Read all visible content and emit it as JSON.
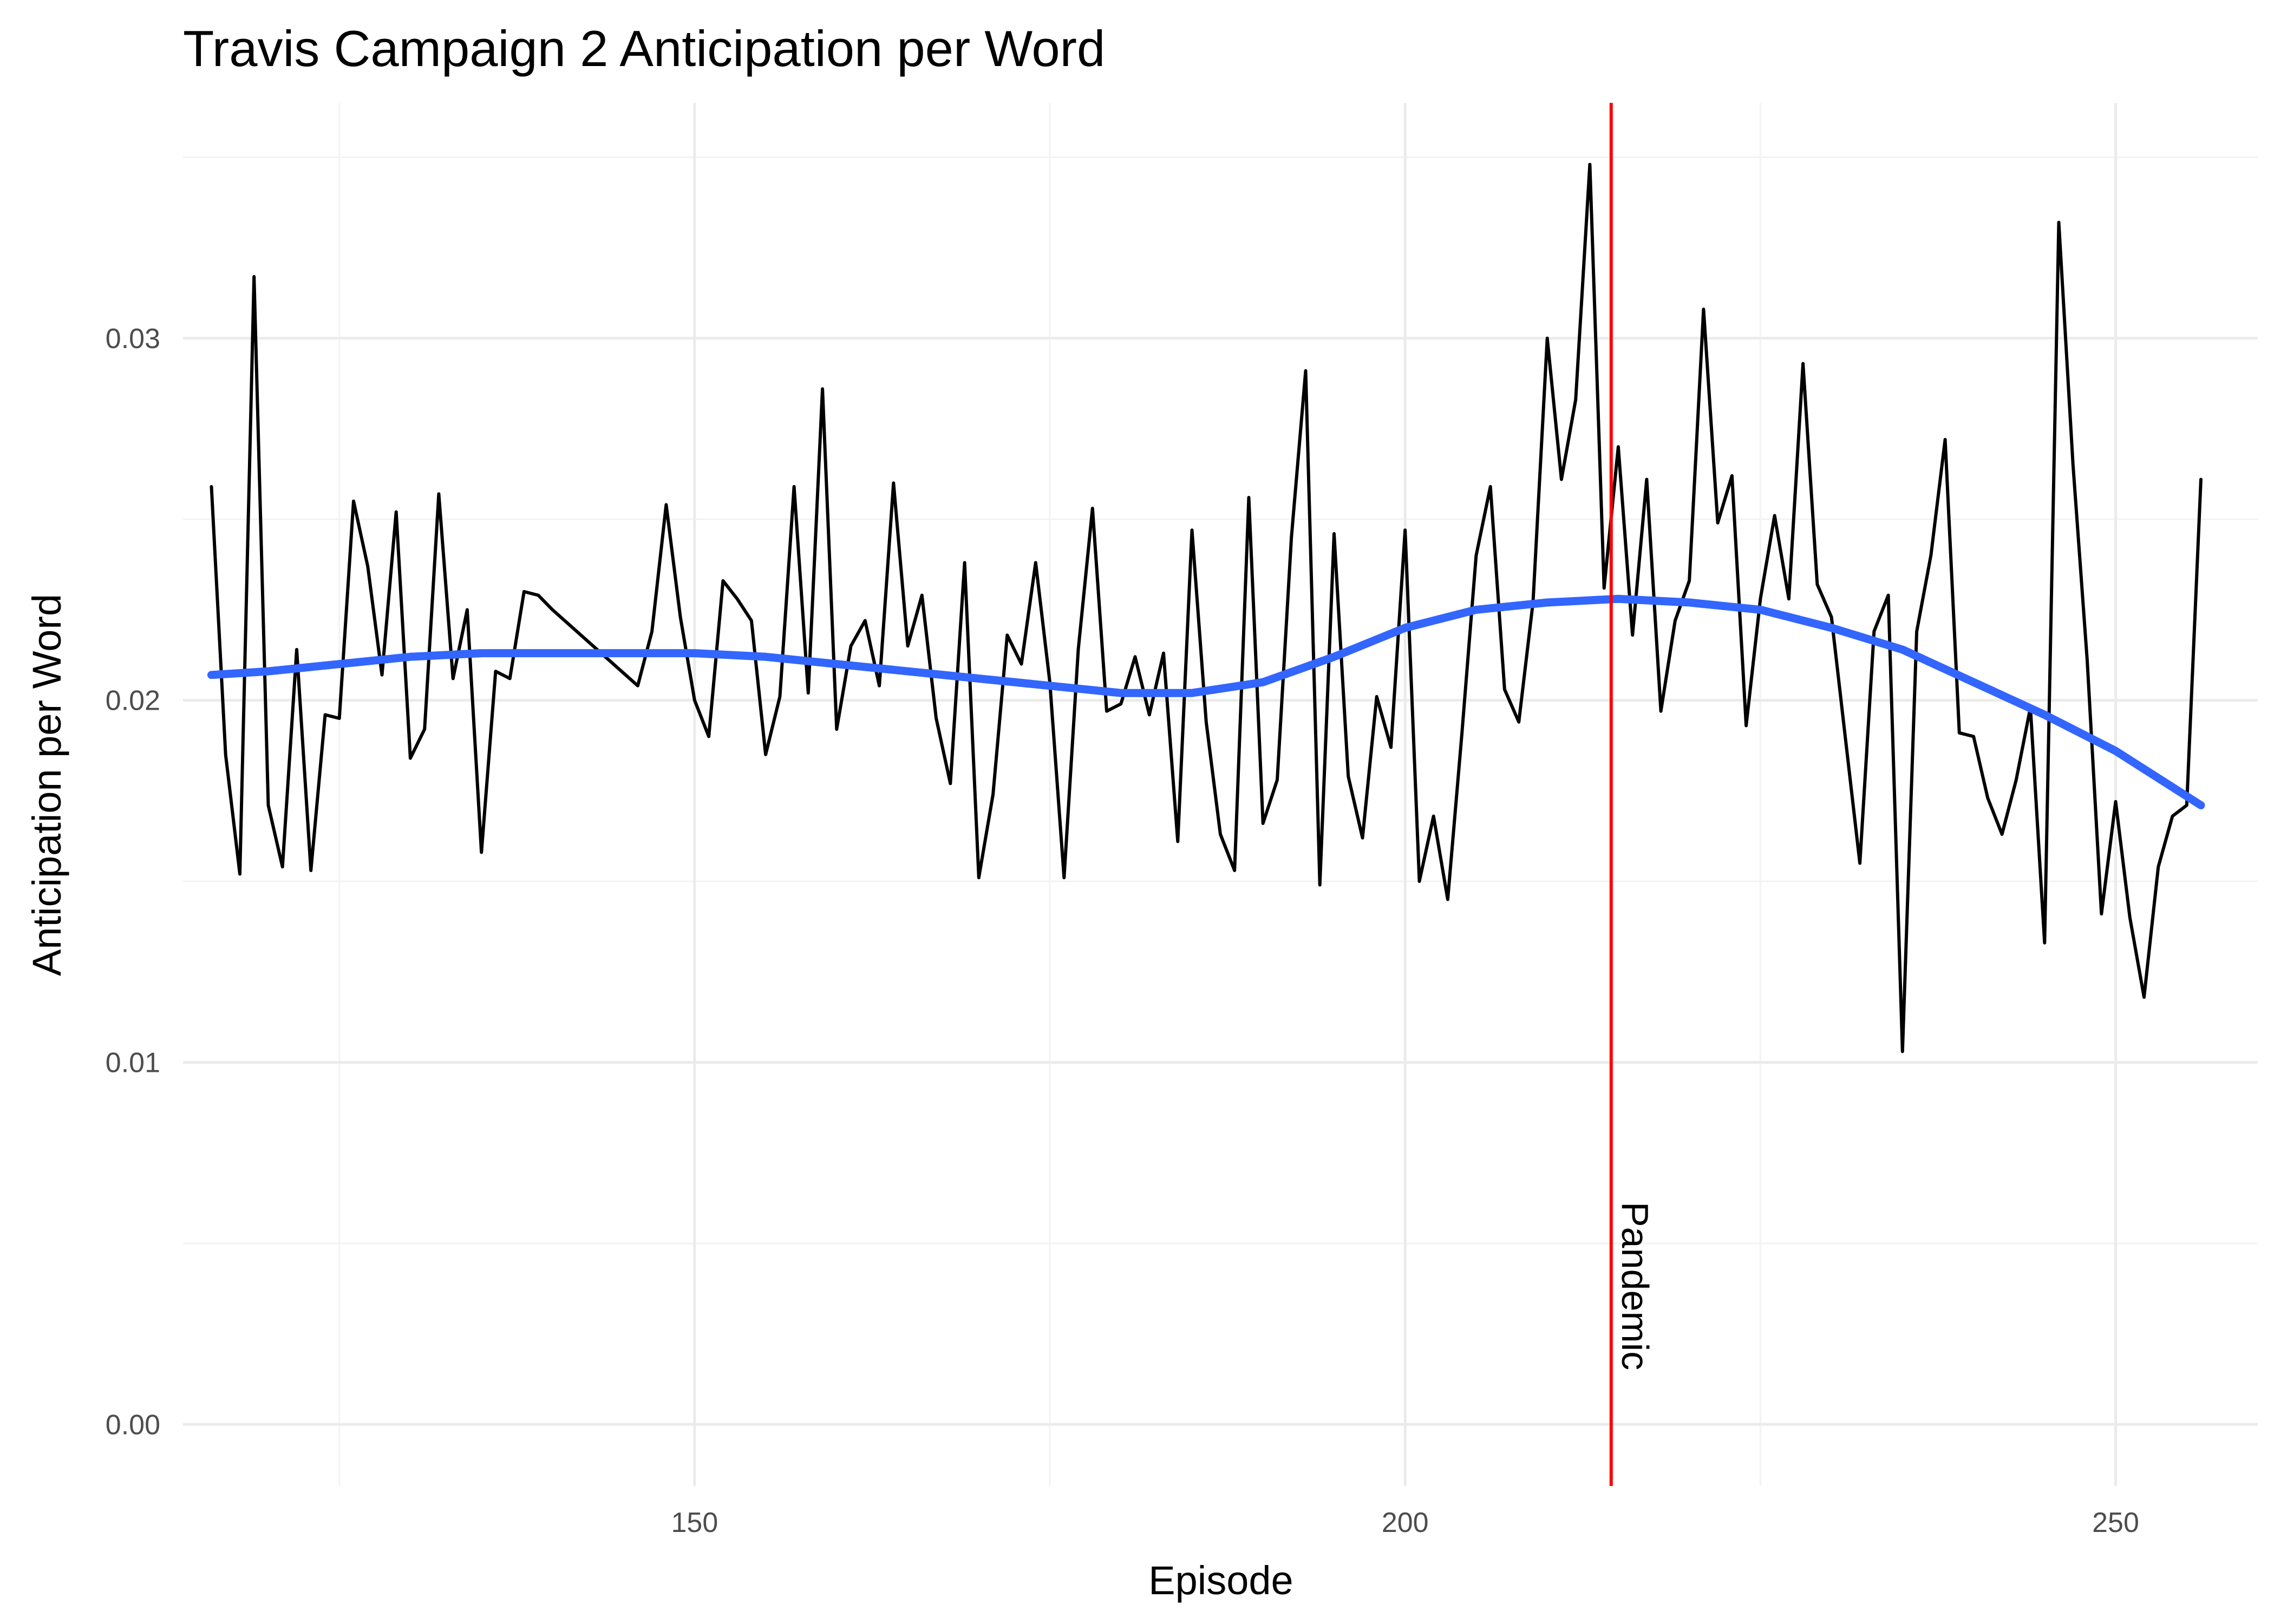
{
  "chart_data": {
    "type": "line",
    "title": "Travis Campaign 2 Anticipation per Word",
    "xlabel": "Episode",
    "ylabel": "Anticipation per Word",
    "xlim": [
      114,
      260
    ],
    "ylim": [
      -0.0017,
      0.0365
    ],
    "x_ticks": [
      150,
      200,
      250
    ],
    "x_tick_labels": [
      "150",
      "200",
      "250"
    ],
    "x_minor_ticks": [
      125,
      175,
      225
    ],
    "y_ticks": [
      0.0,
      0.01,
      0.02,
      0.03
    ],
    "y_tick_labels": [
      "0.00",
      "0.01",
      "0.02",
      "0.03"
    ],
    "y_minor_ticks": [
      0.005,
      0.015,
      0.025,
      0.035
    ],
    "grid": true,
    "series": [
      {
        "color": "#000000",
        "x": [
          116,
          117,
          118,
          119,
          120,
          121,
          122,
          123,
          124,
          125,
          126,
          127,
          128,
          129,
          130,
          131,
          132,
          133,
          134,
          135,
          136,
          137,
          138,
          139,
          140,
          146,
          147,
          148,
          149,
          150,
          151,
          152,
          153,
          154,
          155,
          156,
          157,
          158,
          159,
          160,
          161,
          162,
          163,
          164,
          165,
          166,
          167,
          168,
          169,
          170,
          171,
          172,
          173,
          174,
          175,
          176,
          177,
          178,
          179,
          180,
          181,
          182,
          183,
          184,
          185,
          186,
          187,
          188,
          189,
          190,
          191,
          192,
          193,
          194,
          195,
          196,
          197,
          198,
          199,
          200,
          201,
          202,
          203,
          204,
          205,
          206,
          207,
          208,
          209,
          210,
          211,
          212,
          213,
          214,
          215,
          216,
          217,
          218,
          219,
          220,
          221,
          222,
          223,
          224,
          225,
          226,
          227,
          228,
          229,
          230,
          231,
          232,
          233,
          234,
          235,
          236,
          237,
          238,
          239,
          240,
          241,
          242,
          243,
          244,
          245,
          246,
          247,
          248,
          249,
          250,
          251,
          252,
          253,
          254,
          255,
          256
        ],
        "y": [
          0.0259,
          0.0185,
          0.0152,
          0.0317,
          0.0171,
          0.0154,
          0.0214,
          0.0153,
          0.0196,
          0.0195,
          0.0255,
          0.0237,
          0.0207,
          0.0252,
          0.0184,
          0.0192,
          0.0257,
          0.0206,
          0.0225,
          0.0158,
          0.0208,
          0.0206,
          0.023,
          0.0229,
          0.0225,
          0.0204,
          0.0219,
          0.0254,
          0.0223,
          0.02,
          0.019,
          0.0233,
          0.0228,
          0.0222,
          0.0185,
          0.0201,
          0.0259,
          0.0202,
          0.0286,
          0.0192,
          0.0215,
          0.0222,
          0.0204,
          0.026,
          0.0215,
          0.0229,
          0.0195,
          0.0177,
          0.0238,
          0.0151,
          0.0174,
          0.0218,
          0.021,
          0.0238,
          0.0205,
          0.0151,
          0.0214,
          0.0253,
          0.0197,
          0.0199,
          0.0212,
          0.0196,
          0.0213,
          0.0161,
          0.0247,
          0.0194,
          0.0163,
          0.0153,
          0.0256,
          0.0166,
          0.0178,
          0.0245,
          0.0291,
          0.0149,
          0.0246,
          0.0179,
          0.0162,
          0.0201,
          0.0187,
          0.0247,
          0.015,
          0.0168,
          0.0145,
          0.0191,
          0.024,
          0.0259,
          0.0203,
          0.0194,
          0.0227,
          0.03,
          0.0261,
          0.0283,
          0.0348,
          0.0231,
          0.027,
          0.0218,
          0.0261,
          0.0197,
          0.0222,
          0.0233,
          0.0308,
          0.0249,
          0.0262,
          0.0193,
          0.0228,
          0.0251,
          0.0228,
          0.0293,
          0.0232,
          0.0223,
          0.0189,
          0.0155,
          0.0219,
          0.0229,
          0.0103,
          0.0219,
          0.024,
          0.0272,
          0.0191,
          0.019,
          0.0173,
          0.0163,
          0.0178,
          0.0198,
          0.0133,
          0.0332,
          0.0265,
          0.0211,
          0.0141,
          0.0172,
          0.014,
          0.0118,
          0.0154,
          0.0168,
          0.0171,
          0.0261
        ]
      },
      {
        "color": "#3366ff",
        "x": [
          116,
          120,
          125,
          130,
          135,
          140,
          145,
          150,
          155,
          160,
          165,
          170,
          175,
          180,
          185,
          190,
          195,
          200,
          205,
          210,
          215,
          220,
          225,
          230,
          235,
          240,
          245,
          250,
          256
        ],
        "y": [
          0.0207,
          0.0208,
          0.021,
          0.0212,
          0.0213,
          0.0213,
          0.0213,
          0.0213,
          0.0212,
          0.021,
          0.0208,
          0.0206,
          0.0204,
          0.0202,
          0.0202,
          0.0205,
          0.0212,
          0.022,
          0.0225,
          0.0227,
          0.0228,
          0.0227,
          0.0225,
          0.022,
          0.0214,
          0.0205,
          0.0196,
          0.0186,
          0.0171
        ]
      }
    ],
    "annotations": [
      {
        "type": "vline",
        "x": 214.5,
        "color": "#ff0000",
        "label": "Pandemic"
      }
    ]
  }
}
